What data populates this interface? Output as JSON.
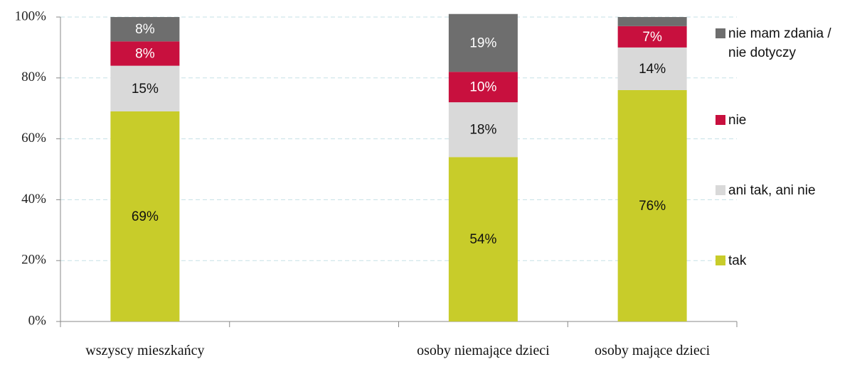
{
  "chart_data": {
    "type": "stacked_bar",
    "categories": [
      "wszyscy mieszkańcy",
      null,
      "osoby niemające dzieci",
      "osoby mające dzieci"
    ],
    "series": [
      {
        "name": "tak",
        "color": "#c8cc2a",
        "values": [
          69,
          null,
          54,
          76
        ],
        "value_labels": [
          "69%",
          null,
          "54%",
          "76%"
        ]
      },
      {
        "name": "ani tak, ani nie",
        "color": "#d9d9d9",
        "values": [
          15,
          null,
          18,
          14
        ],
        "value_labels": [
          "15%",
          null,
          "18%",
          "14%"
        ]
      },
      {
        "name": "nie",
        "color": "#c8103e",
        "values": [
          8,
          null,
          10,
          7
        ],
        "value_labels": [
          "8%",
          null,
          "10%",
          "7%"
        ]
      },
      {
        "name": "nie mam zdania / nie dotyczy",
        "color": "#6e6e6e",
        "values": [
          8,
          null,
          19,
          3
        ],
        "value_labels": [
          "8%",
          null,
          "19%",
          null
        ]
      }
    ],
    "ylim": [
      0,
      100
    ],
    "yticks": [
      {
        "value": 0,
        "label": "0%"
      },
      {
        "value": 20,
        "label": "20%"
      },
      {
        "value": 40,
        "label": "40%"
      },
      {
        "value": 60,
        "label": "60%"
      },
      {
        "value": 80,
        "label": "80%"
      },
      {
        "value": 100,
        "label": "100%"
      }
    ],
    "grid": true,
    "legend": "right"
  }
}
